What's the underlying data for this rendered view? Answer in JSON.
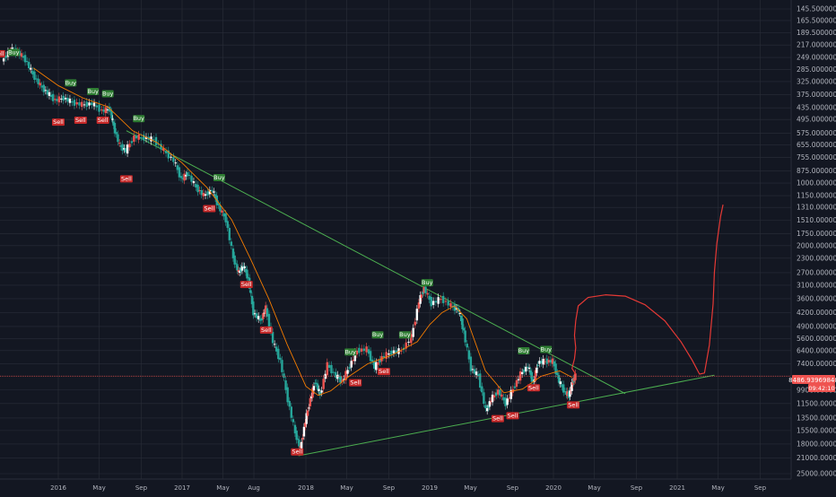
{
  "colors": {
    "background": "#131722",
    "grid": "#2a2e39",
    "axis_text": "#b2b5be",
    "up_candle": "#ffffff",
    "down_candle": "#26a69a",
    "candle_red": "#ef5350",
    "moving_average": "#f57c00",
    "trendline": "#4caf50",
    "drawing": "#e53935",
    "buy_label": "#2e7d32",
    "sell_label": "#c62828",
    "price_label": "#ef5350"
  },
  "chart_data": {
    "type": "line",
    "scale": "log",
    "y_inverted": true,
    "grid": true,
    "price_axis": {
      "ticks": [
        {
          "value": 145.5,
          "label": "145.50000000"
        },
        {
          "value": 165.5,
          "label": "165.50000000"
        },
        {
          "value": 189.5,
          "label": "189.50000000"
        },
        {
          "value": 217,
          "label": "217.00000000"
        },
        {
          "value": 249,
          "label": "249.00000000"
        },
        {
          "value": 285,
          "label": "285.00000000"
        },
        {
          "value": 325,
          "label": "325.00000000"
        },
        {
          "value": 375,
          "label": "375.00000000"
        },
        {
          "value": 435,
          "label": "435.00000000"
        },
        {
          "value": 495,
          "label": "495.00000000"
        },
        {
          "value": 575,
          "label": "575.00000000"
        },
        {
          "value": 655,
          "label": "655.00000000"
        },
        {
          "value": 755,
          "label": "755.00000000"
        },
        {
          "value": 875,
          "label": "875.00000000"
        },
        {
          "value": 1000,
          "label": "1000.00000000"
        },
        {
          "value": 1150,
          "label": "1150.00000000"
        },
        {
          "value": 1310,
          "label": "1310.00000000"
        },
        {
          "value": 1510,
          "label": "1510.00000000"
        },
        {
          "value": 1750,
          "label": "1750.00000000"
        },
        {
          "value": 2000,
          "label": "2000.00000000"
        },
        {
          "value": 2300,
          "label": "2300.00000000"
        },
        {
          "value": 2700,
          "label": "2700.00000000"
        },
        {
          "value": 3100,
          "label": "3100.00000000"
        },
        {
          "value": 3600,
          "label": "3600.00000000"
        },
        {
          "value": 4200,
          "label": "4200.00000000"
        },
        {
          "value": 4900,
          "label": "4900.00000000"
        },
        {
          "value": 5600,
          "label": "5600.00000000"
        },
        {
          "value": 6400,
          "label": "6400.00000000"
        },
        {
          "value": 7400,
          "label": "7400.00000000"
        },
        {
          "value": 9900,
          "label": "9900.00000000"
        },
        {
          "value": 11500,
          "label": "11500.00000000"
        },
        {
          "value": 13500,
          "label": "13500.00000000"
        },
        {
          "value": 15500,
          "label": "15500.00000000"
        },
        {
          "value": 18000,
          "label": "18000.00000000"
        },
        {
          "value": 21000,
          "label": "21000.00000000"
        },
        {
          "value": 25000,
          "label": "25000.00000000"
        }
      ]
    },
    "time_axis": {
      "ticks": [
        {
          "t": 2016.0,
          "label": "2016"
        },
        {
          "t": 2016.33,
          "label": "May"
        },
        {
          "t": 2016.67,
          "label": "Sep"
        },
        {
          "t": 2017.0,
          "label": "2017"
        },
        {
          "t": 2017.33,
          "label": "May"
        },
        {
          "t": 2017.58,
          "label": "Aug"
        },
        {
          "t": 2018.0,
          "label": "2018"
        },
        {
          "t": 2018.33,
          "label": "May"
        },
        {
          "t": 2018.67,
          "label": "Sep"
        },
        {
          "t": 2019.0,
          "label": "2019"
        },
        {
          "t": 2019.33,
          "label": "May"
        },
        {
          "t": 2019.67,
          "label": "Sep"
        },
        {
          "t": 2020.0,
          "label": "2020"
        },
        {
          "t": 2020.33,
          "label": "May"
        },
        {
          "t": 2020.67,
          "label": "Sep"
        },
        {
          "t": 2021.0,
          "label": "2021"
        },
        {
          "t": 2021.33,
          "label": "May"
        },
        {
          "t": 2021.67,
          "label": "Sep"
        }
      ]
    },
    "price_series": [
      {
        "t": 2015.55,
        "v": 260
      },
      {
        "t": 2015.62,
        "v": 228
      },
      {
        "t": 2015.68,
        "v": 235
      },
      {
        "t": 2015.74,
        "v": 255
      },
      {
        "t": 2015.8,
        "v": 300
      },
      {
        "t": 2015.86,
        "v": 340
      },
      {
        "t": 2015.92,
        "v": 370
      },
      {
        "t": 2015.98,
        "v": 400
      },
      {
        "t": 2016.05,
        "v": 390
      },
      {
        "t": 2016.12,
        "v": 410
      },
      {
        "t": 2016.2,
        "v": 420
      },
      {
        "t": 2016.28,
        "v": 415
      },
      {
        "t": 2016.36,
        "v": 450
      },
      {
        "t": 2016.42,
        "v": 440
      },
      {
        "t": 2016.45,
        "v": 530
      },
      {
        "t": 2016.5,
        "v": 660
      },
      {
        "t": 2016.55,
        "v": 700
      },
      {
        "t": 2016.62,
        "v": 600
      },
      {
        "t": 2016.7,
        "v": 605
      },
      {
        "t": 2016.78,
        "v": 620
      },
      {
        "t": 2016.86,
        "v": 700
      },
      {
        "t": 2016.94,
        "v": 780
      },
      {
        "t": 2017.0,
        "v": 960
      },
      {
        "t": 2017.05,
        "v": 900
      },
      {
        "t": 2017.12,
        "v": 1050
      },
      {
        "t": 2017.18,
        "v": 1150
      },
      {
        "t": 2017.25,
        "v": 1080
      },
      {
        "t": 2017.3,
        "v": 1300
      },
      {
        "t": 2017.36,
        "v": 1500
      },
      {
        "t": 2017.42,
        "v": 2300
      },
      {
        "t": 2017.46,
        "v": 2700
      },
      {
        "t": 2017.5,
        "v": 2500
      },
      {
        "t": 2017.54,
        "v": 2900
      },
      {
        "t": 2017.58,
        "v": 4200
      },
      {
        "t": 2017.64,
        "v": 4600
      },
      {
        "t": 2017.68,
        "v": 4000
      },
      {
        "t": 2017.74,
        "v": 5800
      },
      {
        "t": 2017.8,
        "v": 7200
      },
      {
        "t": 2017.86,
        "v": 11000
      },
      {
        "t": 2017.92,
        "v": 16000
      },
      {
        "t": 2017.96,
        "v": 19000
      },
      {
        "t": 2018.0,
        "v": 14000
      },
      {
        "t": 2018.04,
        "v": 11000
      },
      {
        "t": 2018.08,
        "v": 9000
      },
      {
        "t": 2018.12,
        "v": 10500
      },
      {
        "t": 2018.18,
        "v": 7500
      },
      {
        "t": 2018.25,
        "v": 8500
      },
      {
        "t": 2018.3,
        "v": 9000
      },
      {
        "t": 2018.36,
        "v": 7600
      },
      {
        "t": 2018.42,
        "v": 6400
      },
      {
        "t": 2018.5,
        "v": 6300
      },
      {
        "t": 2018.56,
        "v": 7700
      },
      {
        "t": 2018.62,
        "v": 6900
      },
      {
        "t": 2018.7,
        "v": 6500
      },
      {
        "t": 2018.78,
        "v": 6400
      },
      {
        "t": 2018.86,
        "v": 5500
      },
      {
        "t": 2018.92,
        "v": 3700
      },
      {
        "t": 2018.96,
        "v": 3200
      },
      {
        "t": 2019.02,
        "v": 3800
      },
      {
        "t": 2019.1,
        "v": 3600
      },
      {
        "t": 2019.18,
        "v": 3900
      },
      {
        "t": 2019.24,
        "v": 4100
      },
      {
        "t": 2019.28,
        "v": 5200
      },
      {
        "t": 2019.34,
        "v": 7800
      },
      {
        "t": 2019.4,
        "v": 8500
      },
      {
        "t": 2019.46,
        "v": 12500
      },
      {
        "t": 2019.5,
        "v": 11000
      },
      {
        "t": 2019.56,
        "v": 10000
      },
      {
        "t": 2019.62,
        "v": 11500
      },
      {
        "t": 2019.68,
        "v": 9800
      },
      {
        "t": 2019.74,
        "v": 8300
      },
      {
        "t": 2019.8,
        "v": 7600
      },
      {
        "t": 2019.84,
        "v": 9200
      },
      {
        "t": 2019.88,
        "v": 7300
      },
      {
        "t": 2019.94,
        "v": 7200
      },
      {
        "t": 2020.0,
        "v": 7200
      },
      {
        "t": 2020.05,
        "v": 9000
      },
      {
        "t": 2020.1,
        "v": 10200
      },
      {
        "t": 2020.13,
        "v": 10500
      },
      {
        "t": 2020.16,
        "v": 9000
      },
      {
        "t": 2020.18,
        "v": 8486.9
      }
    ],
    "signals": [
      {
        "type": "buy",
        "t": 2015.64,
        "v": 250,
        "label": "Buy"
      },
      {
        "type": "sell",
        "t": 2015.52,
        "v": 225,
        "label": "Sell"
      },
      {
        "type": "buy",
        "t": 2016.1,
        "v": 350,
        "label": "Buy"
      },
      {
        "type": "buy",
        "t": 2016.28,
        "v": 385,
        "label": "Buy"
      },
      {
        "type": "buy",
        "t": 2016.4,
        "v": 395,
        "label": "Buy"
      },
      {
        "type": "sell",
        "t": 2016.0,
        "v": 480,
        "label": "Sell"
      },
      {
        "type": "sell",
        "t": 2016.18,
        "v": 470,
        "label": "Sell"
      },
      {
        "type": "sell",
        "t": 2016.36,
        "v": 470,
        "label": "Sell"
      },
      {
        "type": "buy",
        "t": 2016.65,
        "v": 520,
        "label": "Buy"
      },
      {
        "type": "sell",
        "t": 2016.55,
        "v": 900,
        "label": "Sell"
      },
      {
        "type": "sell",
        "t": 2017.22,
        "v": 1250,
        "label": "Sell"
      },
      {
        "type": "buy",
        "t": 2017.3,
        "v": 1000,
        "label": "Buy"
      },
      {
        "type": "sell",
        "t": 2017.52,
        "v": 2900,
        "label": "Sell"
      },
      {
        "type": "sell",
        "t": 2017.68,
        "v": 4800,
        "label": "Sell"
      },
      {
        "type": "sell",
        "t": 2017.93,
        "v": 18500,
        "label": "Sell"
      },
      {
        "type": "buy",
        "t": 2018.36,
        "v": 6900,
        "label": "Buy"
      },
      {
        "type": "sell",
        "t": 2018.4,
        "v": 8600,
        "label": "Sell"
      },
      {
        "type": "buy",
        "t": 2018.58,
        "v": 5700,
        "label": "Buy"
      },
      {
        "type": "sell",
        "t": 2018.63,
        "v": 7600,
        "label": "Sell"
      },
      {
        "type": "buy",
        "t": 2018.8,
        "v": 5700,
        "label": "Buy"
      },
      {
        "type": "buy",
        "t": 2018.98,
        "v": 3200,
        "label": "Buy"
      },
      {
        "type": "sell",
        "t": 2019.55,
        "v": 12800,
        "label": "Sell"
      },
      {
        "type": "sell",
        "t": 2019.67,
        "v": 12400,
        "label": "Sell"
      },
      {
        "type": "buy",
        "t": 2019.76,
        "v": 6800,
        "label": "Buy"
      },
      {
        "type": "sell",
        "t": 2019.84,
        "v": 9100,
        "label": "Sell"
      },
      {
        "type": "buy",
        "t": 2019.94,
        "v": 6700,
        "label": "Buy"
      },
      {
        "type": "sell",
        "t": 2020.16,
        "v": 11000,
        "label": "Sell"
      }
    ],
    "moving_average": [
      {
        "t": 2015.8,
        "v": 280
      },
      {
        "t": 2016.0,
        "v": 340
      },
      {
        "t": 2016.2,
        "v": 390
      },
      {
        "t": 2016.4,
        "v": 430
      },
      {
        "t": 2016.6,
        "v": 560
      },
      {
        "t": 2016.8,
        "v": 640
      },
      {
        "t": 2017.0,
        "v": 800
      },
      {
        "t": 2017.2,
        "v": 1050
      },
      {
        "t": 2017.4,
        "v": 1500
      },
      {
        "t": 2017.55,
        "v": 2300
      },
      {
        "t": 2017.7,
        "v": 3600
      },
      {
        "t": 2017.85,
        "v": 6000
      },
      {
        "t": 2018.0,
        "v": 9500
      },
      {
        "t": 2018.1,
        "v": 10500
      },
      {
        "t": 2018.2,
        "v": 10000
      },
      {
        "t": 2018.35,
        "v": 8500
      },
      {
        "t": 2018.5,
        "v": 7400
      },
      {
        "t": 2018.7,
        "v": 6700
      },
      {
        "t": 2018.9,
        "v": 5800
      },
      {
        "t": 2019.0,
        "v": 4800
      },
      {
        "t": 2019.1,
        "v": 4200
      },
      {
        "t": 2019.2,
        "v": 3900
      },
      {
        "t": 2019.3,
        "v": 4500
      },
      {
        "t": 2019.45,
        "v": 8000
      },
      {
        "t": 2019.6,
        "v": 10200
      },
      {
        "t": 2019.75,
        "v": 9800
      },
      {
        "t": 2019.9,
        "v": 8500
      },
      {
        "t": 2020.05,
        "v": 8000
      },
      {
        "t": 2020.15,
        "v": 8600
      }
    ],
    "trendlines": [
      {
        "name": "upper",
        "from": {
          "t": 2016.55,
          "v": 560
        },
        "to": {
          "t": 2020.58,
          "v": 10300
        }
      },
      {
        "name": "lower",
        "from": {
          "t": 2017.94,
          "v": 20500
        },
        "to": {
          "t": 2021.3,
          "v": 8400
        }
      }
    ],
    "horizontal_line": {
      "v": 8486.9
    }
  },
  "price_label": {
    "value": "8486.93969840",
    "countdown": "09:42:10"
  },
  "drawing_projection": [
    {
      "t": 2020.18,
      "v": 8300
    },
    {
      "t": 2020.15,
      "v": 7800
    },
    {
      "t": 2020.17,
      "v": 7000
    },
    {
      "t": 2020.18,
      "v": 6200
    },
    {
      "t": 2020.17,
      "v": 5400
    },
    {
      "t": 2020.18,
      "v": 4600
    },
    {
      "t": 2020.2,
      "v": 3900
    },
    {
      "t": 2020.28,
      "v": 3550
    },
    {
      "t": 2020.42,
      "v": 3450
    },
    {
      "t": 2020.58,
      "v": 3500
    },
    {
      "t": 2020.74,
      "v": 3850
    },
    {
      "t": 2020.9,
      "v": 4600
    },
    {
      "t": 2021.03,
      "v": 5800
    },
    {
      "t": 2021.12,
      "v": 7100
    },
    {
      "t": 2021.18,
      "v": 8300
    },
    {
      "t": 2021.22,
      "v": 8200
    },
    {
      "t": 2021.26,
      "v": 6000
    },
    {
      "t": 2021.29,
      "v": 3800
    },
    {
      "t": 2021.3,
      "v": 2700
    },
    {
      "t": 2021.32,
      "v": 1950
    },
    {
      "t": 2021.35,
      "v": 1450
    },
    {
      "t": 2021.37,
      "v": 1270
    }
  ]
}
